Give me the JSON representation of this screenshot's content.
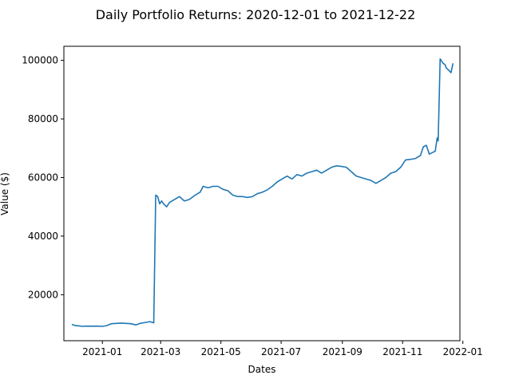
{
  "chart_data": {
    "type": "line",
    "title": "Daily Portfolio Returns: 2020-12-01 to 2021-12-22",
    "xlabel": "Dates",
    "ylabel": "Value ($)",
    "x_axis_type": "date",
    "xlim": [
      "2020-11-23",
      "2021-12-29"
    ],
    "ylim": [
      4300,
      104800
    ],
    "x_ticks": [
      "2021-01",
      "2021-03",
      "2021-05",
      "2021-07",
      "2021-09",
      "2021-11",
      "2022-01"
    ],
    "y_ticks": [
      20000,
      40000,
      60000,
      80000,
      100000
    ],
    "grid": false,
    "series": [
      {
        "color": "#1f77b4",
        "points": [
          [
            "2020-12-01",
            9900
          ],
          [
            "2020-12-04",
            9500
          ],
          [
            "2020-12-08",
            9350
          ],
          [
            "2020-12-12",
            9200
          ],
          [
            "2020-12-16",
            9300
          ],
          [
            "2020-12-21",
            9250
          ],
          [
            "2020-12-26",
            9300
          ],
          [
            "2021-01-01",
            9200
          ],
          [
            "2021-01-05",
            9400
          ],
          [
            "2021-01-10",
            10100
          ],
          [
            "2021-01-15",
            10200
          ],
          [
            "2021-01-20",
            10300
          ],
          [
            "2021-01-25",
            10200
          ],
          [
            "2021-01-30",
            10100
          ],
          [
            "2021-02-04",
            9700
          ],
          [
            "2021-02-08",
            10200
          ],
          [
            "2021-02-13",
            10500
          ],
          [
            "2021-02-18",
            10800
          ],
          [
            "2021-02-22",
            10400
          ],
          [
            "2021-02-24",
            54000
          ],
          [
            "2021-02-26",
            53500
          ],
          [
            "2021-02-28",
            51000
          ],
          [
            "2021-03-02",
            52000
          ],
          [
            "2021-03-04",
            51000
          ],
          [
            "2021-03-07",
            50000
          ],
          [
            "2021-03-10",
            51500
          ],
          [
            "2021-03-15",
            52500
          ],
          [
            "2021-03-20",
            53500
          ],
          [
            "2021-03-25",
            52000
          ],
          [
            "2021-03-30",
            52500
          ],
          [
            "2021-04-05",
            54000
          ],
          [
            "2021-04-10",
            55000
          ],
          [
            "2021-04-13",
            57000
          ],
          [
            "2021-04-18",
            56500
          ],
          [
            "2021-04-23",
            57000
          ],
          [
            "2021-04-28",
            57000
          ],
          [
            "2021-05-03",
            56000
          ],
          [
            "2021-05-08",
            55500
          ],
          [
            "2021-05-13",
            54000
          ],
          [
            "2021-05-18",
            53500
          ],
          [
            "2021-05-23",
            53500
          ],
          [
            "2021-05-28",
            53200
          ],
          [
            "2021-06-02",
            53500
          ],
          [
            "2021-06-07",
            54500
          ],
          [
            "2021-06-12",
            55000
          ],
          [
            "2021-06-17",
            55800
          ],
          [
            "2021-06-22",
            57000
          ],
          [
            "2021-06-27",
            58500
          ],
          [
            "2021-07-02",
            59500
          ],
          [
            "2021-07-07",
            60500
          ],
          [
            "2021-07-12",
            59500
          ],
          [
            "2021-07-17",
            61000
          ],
          [
            "2021-07-22",
            60500
          ],
          [
            "2021-07-27",
            61500
          ],
          [
            "2021-08-01",
            62000
          ],
          [
            "2021-08-06",
            62500
          ],
          [
            "2021-08-11",
            61500
          ],
          [
            "2021-08-16",
            62500
          ],
          [
            "2021-08-21",
            63500
          ],
          [
            "2021-08-26",
            64000
          ],
          [
            "2021-08-31",
            63800
          ],
          [
            "2021-09-05",
            63500
          ],
          [
            "2021-09-10",
            62000
          ],
          [
            "2021-09-15",
            60500
          ],
          [
            "2021-09-20",
            60000
          ],
          [
            "2021-09-25",
            59500
          ],
          [
            "2021-09-30",
            59000
          ],
          [
            "2021-10-05",
            58000
          ],
          [
            "2021-10-10",
            59000
          ],
          [
            "2021-10-15",
            60000
          ],
          [
            "2021-10-20",
            61500
          ],
          [
            "2021-10-25",
            62000
          ],
          [
            "2021-10-30",
            63500
          ],
          [
            "2021-11-04",
            66000
          ],
          [
            "2021-11-09",
            66200
          ],
          [
            "2021-11-14",
            66500
          ],
          [
            "2021-11-19",
            67500
          ],
          [
            "2021-11-22",
            70500
          ],
          [
            "2021-11-25",
            71000
          ],
          [
            "2021-11-28",
            68000
          ],
          [
            "2021-12-01",
            68500
          ],
          [
            "2021-12-04",
            69000
          ],
          [
            "2021-12-06",
            73500
          ],
          [
            "2021-12-07",
            72500
          ],
          [
            "2021-12-09",
            100500
          ],
          [
            "2021-12-12",
            99000
          ],
          [
            "2021-12-14",
            98500
          ],
          [
            "2021-12-15",
            97500
          ],
          [
            "2021-12-18",
            96500
          ],
          [
            "2021-12-20",
            95800
          ],
          [
            "2021-12-22",
            99000
          ]
        ]
      }
    ]
  }
}
